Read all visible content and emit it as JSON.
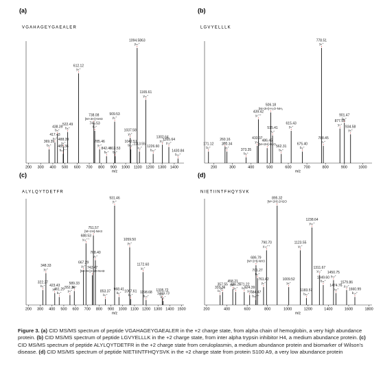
{
  "chart_data": [
    {
      "type": "stem",
      "panel_label": "(a)",
      "sequence": "VGAHAGEYGAEALER",
      "xlabel": "m/z",
      "xlim": [
        180,
        1480
      ],
      "xticks": [
        200,
        300,
        400,
        500,
        600,
        700,
        800,
        900,
        1000,
        1100,
        1200,
        1300,
        1400
      ],
      "ylim": [
        0,
        100
      ],
      "color": "#111111",
      "annotation_color": "#d03030",
      "x": [
        369.39,
        417.43,
        438.39,
        488.39,
        485.36,
        522.49,
        612.12,
        738.08,
        745.53,
        785.46,
        842.46,
        909.53,
        913.53,
        1037.58,
        1042.51,
        1094.5863,
        1113.55,
        1165.61,
        1226.6,
        1302.64,
        1355.64,
        1430.84
      ],
      "x_labels": [
        "369.39",
        "417.43",
        "438.39",
        "488.39",
        "485.36",
        "522.49",
        "612.12",
        "738.08",
        "745.53",
        "785.46",
        "842.46",
        "909.53",
        "913.53",
        "1037.58",
        "1042.51",
        "1094.5863",
        "1113.55",
        "1165.61",
        "1226.60",
        "1302.64",
        "1355.64",
        "1430.84"
      ],
      "ions": [
        "b₄⁺",
        "y₃⁺",
        "b₅⁺",
        "y₄⁺",
        "b₁₀⁺⁺",
        "b₆⁺",
        "y₅⁺",
        "[M+2H]-NH3",
        "b₇⁺",
        "y₇⁺",
        "b₈⁺",
        "y₈⁺",
        "b₉⁺",
        "y₉⁺",
        "b₁₀⁺",
        "y₁₀⁺",
        "b₁₁⁺",
        "y₁₁⁺",
        "b₁₂⁺",
        "y₁₂⁺",
        "y₁₃⁺",
        "b₁₄⁺"
      ],
      "values": [
        12,
        18,
        25,
        14,
        8,
        27,
        78,
        35,
        28,
        12,
        6,
        36,
        6,
        22,
        12,
        100,
        10,
        55,
        8,
        16,
        14,
        4
      ]
    },
    {
      "type": "stem",
      "panel_label": "(b)",
      "sequence": "LGVYELLLK",
      "xlabel": "m/z",
      "xlim": [
        150,
        1050
      ],
      "xticks": [
        200,
        300,
        400,
        500,
        600,
        700,
        800,
        900,
        1000
      ],
      "ylim": [
        0,
        100
      ],
      "color": "#111111",
      "annotation_color": "#d03030",
      "x": [
        171.12,
        260.16,
        270.34,
        373.35,
        433.37,
        439.42,
        486.45,
        506.18,
        515.41,
        562.31,
        615.43,
        675.4,
        778.51,
        788.45,
        877.55,
        901.47,
        934.58
      ],
      "x_labels": [
        "171.12",
        "260.16",
        "270.34",
        "373.35",
        "433.37",
        "439.42",
        "486.45",
        "506.18",
        "515.41",
        "562.31",
        "615.43",
        "675.40",
        "778.51",
        "788.45",
        "877.55",
        "901.47",
        "934.58"
      ],
      "ions": [
        "b₂⁺",
        "y₂⁺",
        "b₃⁺",
        "b₄⁺",
        "y₃⁺",
        "y₇⁺⁺",
        "[M+2H]-H₂O",
        "[M+2H]-H₂O-NH₃",
        "y₄⁺",
        "b₅⁺",
        "y₅⁺",
        "b₆⁺",
        "y₆⁺",
        "b₇⁺",
        "y₇⁺",
        "b₈⁺",
        "y₈⁺"
      ],
      "values": [
        10,
        14,
        10,
        5,
        15,
        38,
        13,
        44,
        24,
        8,
        28,
        10,
        100,
        15,
        30,
        35,
        25
      ]
    },
    {
      "type": "stem",
      "panel_label": "(c)",
      "sequence": "ALYLQYTDETFR",
      "xlabel": "m/z",
      "xlim": [
        180,
        1520
      ],
      "xticks": [
        200,
        300,
        400,
        500,
        600,
        700,
        800,
        900,
        1000,
        1100,
        1200,
        1300,
        1400,
        1500
      ],
      "ylim": [
        0,
        100
      ],
      "color": "#111111",
      "annotation_color": "#d03030",
      "x": [
        322.27,
        348.33,
        423.43,
        461.29,
        552.36,
        589.33,
        667.29,
        688.53,
        742.47,
        751.57,
        768.4,
        853.37,
        931.46,
        968.41,
        1059.5,
        1067.61,
        1172.6,
        1198.68,
        1335.72,
        1343.73
      ],
      "x_labels": [
        "322.27",
        "348.33",
        "423.43",
        "461.29",
        "552.36",
        "589.33",
        "667.29",
        "688.53",
        "742.47",
        "751.57",
        "768.40",
        "853.37",
        "931.46",
        "968.41",
        "1059.50",
        "1067.61",
        "1172.60",
        "1198.68",
        "1335.72",
        "1343.73"
      ],
      "ions": [
        "b₃⁺",
        "y₂⁺",
        "y₃⁺",
        "b₄⁺",
        "y₄⁺",
        "b₅⁺",
        "y₅⁺",
        "y₁₁⁺⁺",
        "[M+2H]-H20-NH3",
        "[M+2H]-NH3",
        "y₆⁺",
        "b₇⁺",
        "y₇⁺",
        "b₈⁺",
        "y₈⁺",
        "b₉⁺",
        "y₉⁺",
        "b₁₀⁺",
        "y₁₀⁺",
        "b₁₁⁺"
      ],
      "values": [
        15,
        32,
        12,
        8,
        10,
        14,
        35,
        62,
        30,
        70,
        45,
        6,
        100,
        8,
        58,
        6,
        33,
        5,
        7,
        4
      ]
    },
    {
      "type": "stem",
      "panel_label": "(d)",
      "sequence": "NIETIINTFHQYSVK",
      "xlabel": "m/z",
      "xlim": [
        180,
        1830
      ],
      "xticks": [
        200,
        400,
        600,
        800,
        1000,
        1200,
        1400,
        1600,
        1800
      ],
      "ylim": [
        0,
        100
      ],
      "color": "#111111",
      "annotation_color": "#d03030",
      "x": [
        333.36,
        357.55,
        458.21,
        486.27,
        571.22,
        624.39,
        684.47,
        686.79,
        701.27,
        761.42,
        790.7,
        895.32,
        1009.52,
        1123.55,
        1183.57,
        1238.64,
        1311.67,
        1349.6,
        1450.75,
        1474.76,
        1579.86,
        1660.99
      ],
      "x_labels": [
        "333.36",
        "357.55",
        "458.21",
        "486.27",
        "571.22",
        "624.39",
        "684.47",
        "686.79",
        "701.27",
        "761.42",
        "790.70",
        "895.32",
        "1009.52",
        "1123.55",
        "1183.57",
        "1238.64",
        "1311.67",
        "1349.60",
        "1450.75",
        "1474.76",
        "1579.86",
        "1660.99"
      ],
      "ions": [
        "b₃⁺",
        "y₃⁺",
        "b4+",
        "y₄⁺",
        "b₅⁺",
        "y₅⁺",
        "b₁₁⁺⁺",
        "[M+2H]-NH3",
        "b₆⁺",
        "y₆⁺",
        "y₁₃⁺⁺",
        "[M+2H]-2H2O",
        "y₈⁺",
        "y₉⁺",
        "b₁₀⁺",
        "y₁₀⁺",
        "y₁₁⁺",
        "b₁₁⁺",
        "y₁₂⁺",
        "b₁₂⁺",
        "y₁₃⁺",
        "b₁₄⁺"
      ],
      "values": [
        10,
        13,
        16,
        13,
        13,
        10,
        5,
        40,
        27,
        18,
        55,
        100,
        18,
        55,
        7,
        78,
        30,
        20,
        25,
        12,
        15,
        8
      ]
    }
  ],
  "figure": {
    "label": "Figure 3.",
    "parts": [
      {
        "label": "(a)",
        "text": "CID MS/MS spectrum of peptide VGAHAGEYGAEALER in the +2 charge state, from alpha chain of hemoglobin, a very high abundance protein."
      },
      {
        "label": "(b)",
        "text": "CID MS/MS spectrum of peptide LGVYELLLK in the +2 charge state, from inter alpha trypsin inhibitor H4, a medium abundance protein."
      },
      {
        "label": "(c)",
        "text": "CID MS/MS spectrum of peptide ALYLQYTDETFR in the +2 charge state from ceruloplasmin, a medium abundance protein and biomarker of Wilson's disease."
      },
      {
        "label": "(d)",
        "text": "CID MS/MS spectrum of peptide NIETIINTFHQYSVK in the +2 charge state from protein S100 A9, a very low abundance protein"
      }
    ]
  }
}
